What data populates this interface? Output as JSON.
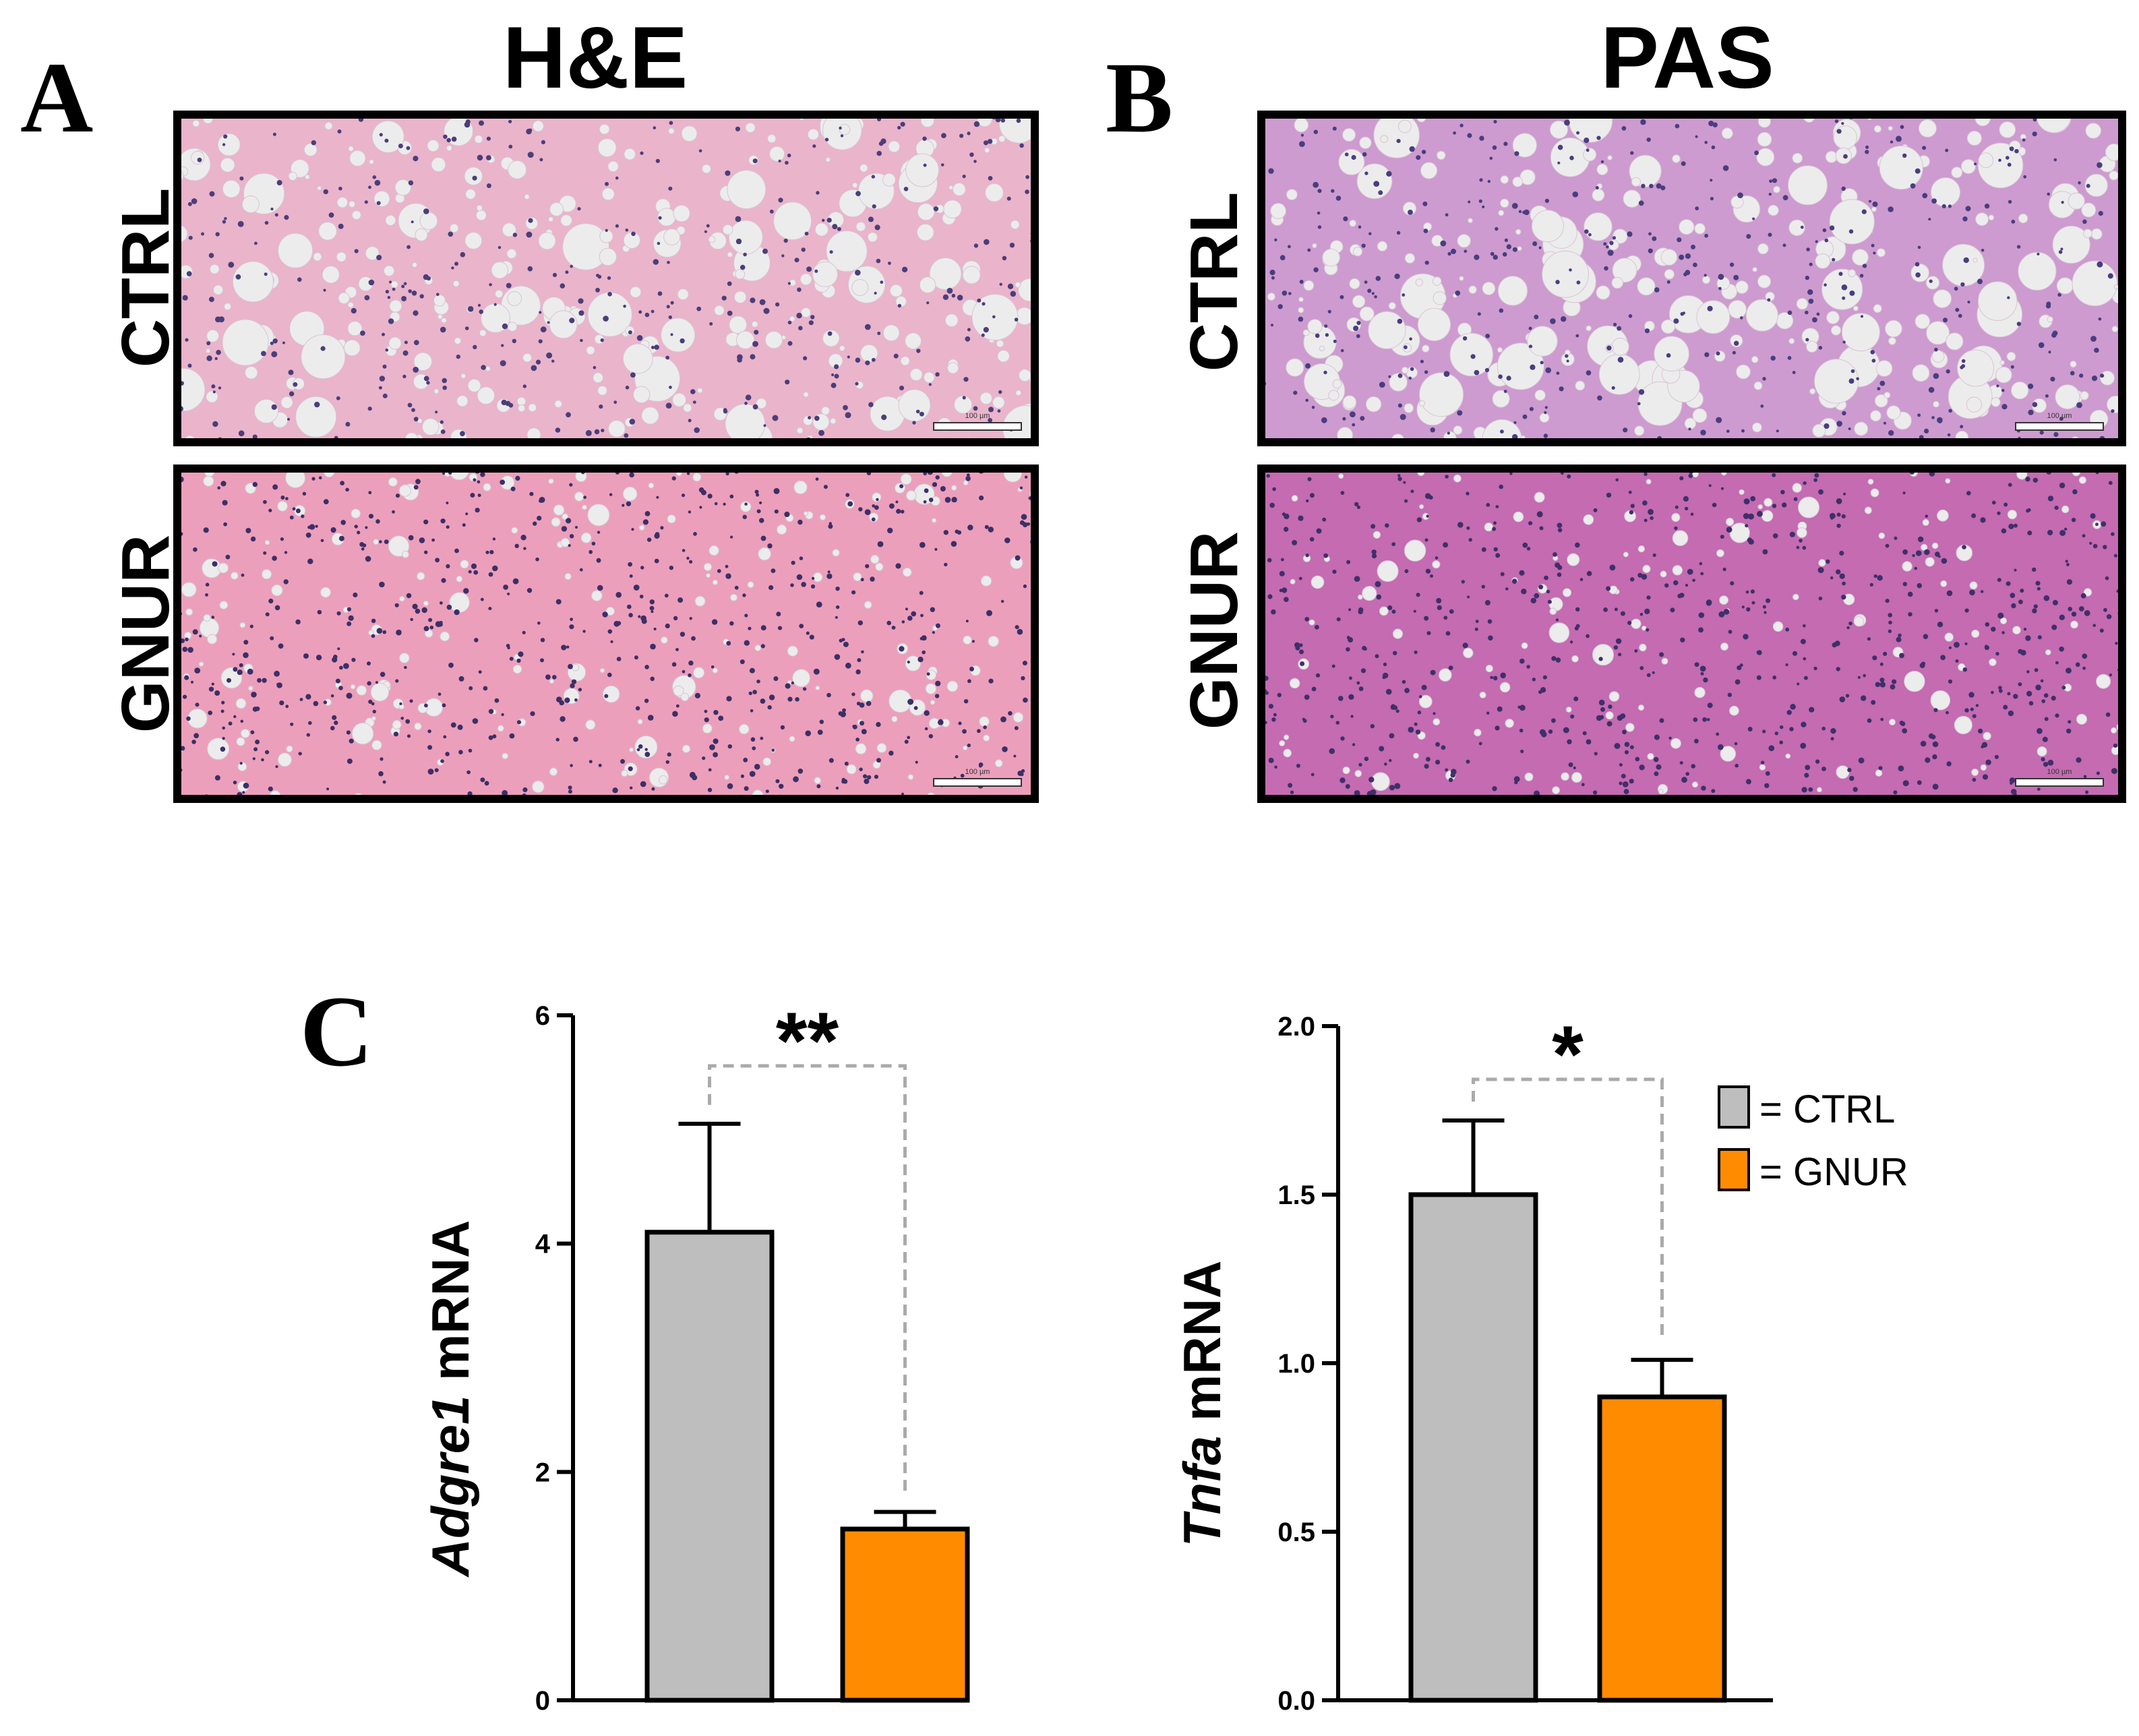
{
  "panels": {
    "A": {
      "letter": "A",
      "title": "H&E"
    },
    "B": {
      "letter": "B",
      "title": "PAS"
    },
    "C": {
      "letter": "C"
    }
  },
  "rows": {
    "top": "CTRL",
    "bottom": "GNUR"
  },
  "scale_bar_label": "100 µm",
  "images": {
    "he_ctrl": {
      "base": "#eab4cb",
      "vac": 330,
      "maxr": 30,
      "nuc": "#4b3e7a",
      "nuclei": 420
    },
    "he_gnur": {
      "base": "#ec9fba",
      "vac": 220,
      "maxr": 15,
      "nuc": "#3c2f68",
      "nuclei": 700
    },
    "pas_ctrl": {
      "base": "#cd9bcf",
      "vac": 330,
      "maxr": 30,
      "nuc": "#4a3d80",
      "nuclei": 420
    },
    "pas_gnur": {
      "base": "#c46bb1",
      "vac": 160,
      "maxr": 14,
      "nuc": "#3f2f6a",
      "nuclei": 700
    }
  },
  "legend": [
    {
      "label": "= CTRL",
      "color": "#bebebe"
    },
    {
      "label": "= GNUR",
      "color": "#ff8c00"
    }
  ],
  "chart_data": [
    {
      "type": "bar",
      "categories": [
        "CTRL",
        "GNUR"
      ],
      "values": [
        4.1,
        1.5
      ],
      "errors": [
        0.95,
        0.15
      ],
      "colors": [
        "#bebebe",
        "#ff8c00"
      ],
      "ylabel_italic": "Adgre1",
      "ylabel_rest": " mRNA",
      "ylim": [
        0,
        6
      ],
      "yticks": [
        0,
        2,
        4,
        6
      ],
      "ytick_labels": [
        "0",
        "2",
        "4",
        "6"
      ],
      "significance": "**"
    },
    {
      "type": "bar",
      "categories": [
        "CTRL",
        "GNUR"
      ],
      "values": [
        1.5,
        0.9
      ],
      "errors": [
        0.22,
        0.11
      ],
      "colors": [
        "#bebebe",
        "#ff8c00"
      ],
      "ylabel_italic": "Tnfa",
      "ylabel_rest": " mRNA",
      "ylim": [
        0,
        2.0
      ],
      "yticks": [
        0,
        0.5,
        1.0,
        1.5,
        2.0
      ],
      "ytick_labels": [
        "0.0",
        "0.5",
        "1.0",
        "1.5",
        "2.0"
      ],
      "significance": "*"
    }
  ]
}
